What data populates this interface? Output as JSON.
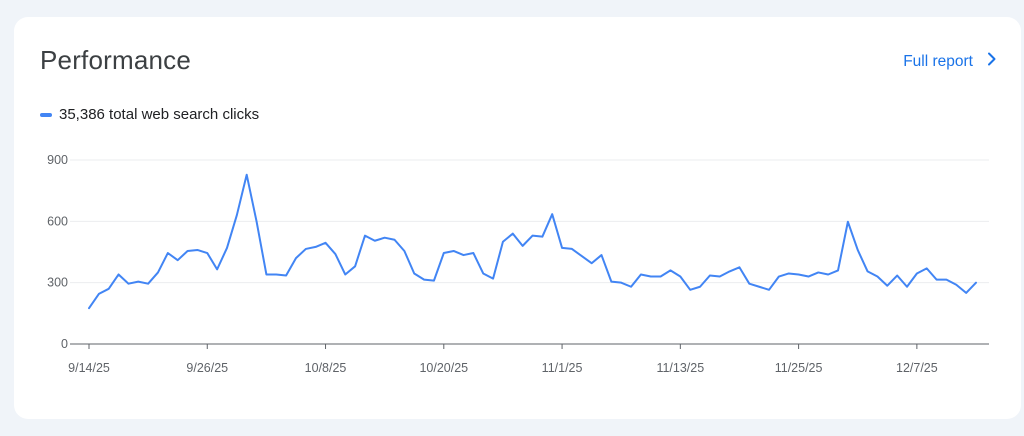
{
  "card": {
    "title": "Performance",
    "report_link_label": "Full report"
  },
  "legend": {
    "label": "35,386 total web search clicks"
  },
  "colors": {
    "line": "#4285f4",
    "link": "#1a73e8",
    "grid": "#ebedef"
  },
  "chart_data": {
    "type": "line",
    "ylim": [
      0,
      900
    ],
    "y_ticks": [
      0,
      300,
      600,
      900
    ],
    "x_tick_labels": [
      "9/14/25",
      "9/26/25",
      "10/8/25",
      "10/20/25",
      "11/1/25",
      "11/13/25",
      "11/25/25",
      "12/7/25"
    ],
    "x_tick_every": 12,
    "series": [
      {
        "values": [
          175,
          245,
          270,
          340,
          295,
          305,
          295,
          350,
          445,
          410,
          455,
          460,
          445,
          365,
          470,
          630,
          828,
          600,
          340,
          340,
          335,
          420,
          465,
          475,
          495,
          440,
          340,
          380,
          530,
          505,
          520,
          510,
          455,
          345,
          315,
          310,
          445,
          455,
          435,
          445,
          345,
          320,
          500,
          540,
          480,
          530,
          525,
          635,
          470,
          465,
          430,
          395,
          435,
          305,
          300,
          280,
          340,
          330,
          330,
          360,
          330,
          265,
          280,
          335,
          330,
          355,
          375,
          295,
          280,
          265,
          330,
          345,
          340,
          330,
          350,
          340,
          360,
          598,
          460,
          355,
          330,
          285,
          335,
          280,
          345,
          370,
          315,
          315,
          290,
          250,
          300
        ]
      }
    ]
  }
}
